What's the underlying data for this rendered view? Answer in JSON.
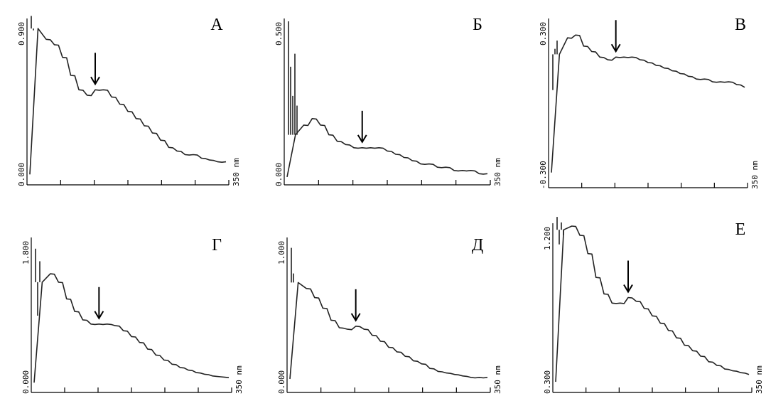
{
  "chart_data": [
    {
      "type": "line",
      "panel_label": "А",
      "x_end_label": "350 nm",
      "ylim": [
        0,
        0.9
      ],
      "y_min_label": "0.000",
      "y_max_label": "0.900",
      "arrow_at_point": 8,
      "x_index": [
        0,
        1,
        2,
        3,
        4,
        5,
        6,
        7,
        8,
        9,
        10,
        11,
        12,
        13,
        14,
        15,
        16,
        17,
        18,
        19,
        20,
        21,
        22,
        23,
        24
      ],
      "values": [
        0.05,
        0.86,
        0.8,
        0.77,
        0.7,
        0.6,
        0.52,
        0.49,
        0.52,
        0.52,
        0.48,
        0.44,
        0.4,
        0.36,
        0.32,
        0.28,
        0.24,
        0.2,
        0.18,
        0.16,
        0.16,
        0.14,
        0.13,
        0.12,
        0.12
      ],
      "spikes": [
        0.93,
        0.85
      ]
    },
    {
      "type": "line",
      "panel_label": "Б",
      "x_end_label": "350 nm",
      "ylim": [
        0,
        0.5
      ],
      "y_min_label": "0.000",
      "y_max_label": "0.500",
      "arrow_at_point": 9,
      "x_index": [
        0,
        1,
        2,
        3,
        4,
        5,
        6,
        7,
        8,
        9,
        10,
        11,
        12,
        13,
        14,
        15,
        16,
        17,
        18,
        19,
        20,
        21,
        22,
        23,
        24
      ],
      "values": [
        0.02,
        0.15,
        0.18,
        0.2,
        0.18,
        0.15,
        0.13,
        0.12,
        0.11,
        0.11,
        0.11,
        0.11,
        0.1,
        0.09,
        0.08,
        0.07,
        0.06,
        0.06,
        0.05,
        0.05,
        0.04,
        0.04,
        0.04,
        0.03,
        0.03
      ],
      "spikes": [
        0.5,
        0.36,
        0.27,
        0.4,
        0.24
      ]
    },
    {
      "type": "line",
      "panel_label": "В",
      "x_end_label": "350 nm",
      "ylim": [
        -0.3,
        0.3
      ],
      "y_min_label": "-0.300",
      "y_max_label": "0.300",
      "arrow_at_point": 8,
      "x_index": [
        0,
        1,
        2,
        3,
        4,
        5,
        6,
        7,
        8,
        9,
        10,
        11,
        12,
        13,
        14,
        15,
        16,
        17,
        18,
        19,
        20,
        21,
        22,
        23,
        24
      ],
      "values": [
        -0.25,
        0.18,
        0.24,
        0.25,
        0.21,
        0.19,
        0.17,
        0.16,
        0.17,
        0.17,
        0.17,
        0.16,
        0.15,
        0.14,
        0.13,
        0.12,
        0.11,
        0.1,
        0.09,
        0.09,
        0.08,
        0.08,
        0.08,
        0.07,
        0.06
      ],
      "spikes": [
        0.05,
        0.2,
        0.23
      ]
    },
    {
      "type": "line",
      "panel_label": "Г",
      "x_end_label": "350 nm",
      "ylim": [
        0,
        1.8
      ],
      "y_min_label": "0.000",
      "y_max_label": "1.800",
      "arrow_at_point": 8,
      "x_index": [
        0,
        1,
        2,
        3,
        4,
        5,
        6,
        7,
        8,
        9,
        10,
        11,
        12,
        13,
        14,
        15,
        16,
        17,
        18,
        19,
        20,
        21,
        22,
        23,
        24
      ],
      "values": [
        0.1,
        1.3,
        1.4,
        1.3,
        1.1,
        0.95,
        0.85,
        0.8,
        0.8,
        0.8,
        0.78,
        0.72,
        0.65,
        0.58,
        0.5,
        0.43,
        0.37,
        0.32,
        0.28,
        0.25,
        0.22,
        0.2,
        0.18,
        0.17,
        0.16
      ],
      "spikes": [
        1.7,
        0.9,
        1.55
      ]
    },
    {
      "type": "line",
      "panel_label": "Д",
      "x_end_label": "350 nm",
      "ylim": [
        0,
        1.0
      ],
      "y_min_label": "0.000",
      "y_max_label": "1.000",
      "arrow_at_point": 8,
      "x_index": [
        0,
        1,
        2,
        3,
        4,
        5,
        6,
        7,
        8,
        9,
        10,
        11,
        12,
        13,
        14,
        15,
        16,
        17,
        18,
        19,
        20,
        21,
        22,
        23,
        24
      ],
      "values": [
        0.08,
        0.72,
        0.68,
        0.62,
        0.55,
        0.47,
        0.42,
        0.41,
        0.43,
        0.41,
        0.37,
        0.33,
        0.29,
        0.26,
        0.23,
        0.2,
        0.18,
        0.15,
        0.13,
        0.12,
        0.11,
        0.1,
        0.09,
        0.09,
        0.09
      ],
      "spikes": [
        0.95,
        0.78
      ]
    },
    {
      "type": "line",
      "panel_label": "Е",
      "x_end_label": "350 nm",
      "ylim": [
        0.3,
        1.2
      ],
      "y_min_label": "0.300",
      "y_max_label": "1.200",
      "arrow_at_point": 9,
      "x_index": [
        0,
        1,
        2,
        3,
        4,
        5,
        6,
        7,
        8,
        9,
        10,
        11,
        12,
        13,
        14,
        15,
        16,
        17,
        18,
        19,
        20,
        21,
        22,
        23,
        24
      ],
      "values": [
        0.35,
        1.18,
        1.2,
        1.15,
        1.05,
        0.92,
        0.83,
        0.78,
        0.78,
        0.81,
        0.79,
        0.75,
        0.71,
        0.67,
        0.63,
        0.59,
        0.55,
        0.52,
        0.49,
        0.46,
        0.44,
        0.42,
        0.41,
        0.4,
        0.39
      ],
      "spikes": [
        1.25,
        1.1,
        1.22,
        1.15
      ]
    }
  ]
}
